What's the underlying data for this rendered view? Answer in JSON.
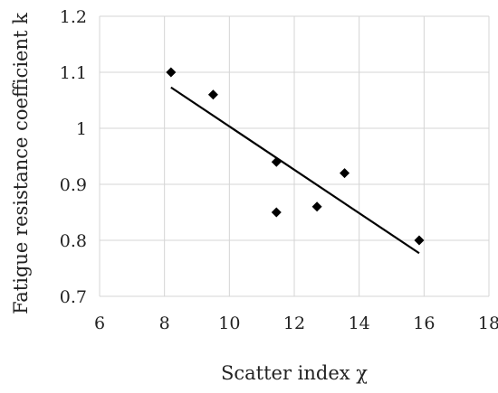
{
  "chart_data": {
    "type": "scatter",
    "title": "",
    "xlabel": "Scatter index χ",
    "ylabel": "Fatigue resistance coefficient k",
    "xlim": [
      6,
      18
    ],
    "ylim": [
      0.7,
      1.2
    ],
    "x_ticks": [
      6,
      8,
      10,
      12,
      14,
      16,
      18
    ],
    "x_tick_labels": [
      "6",
      "8",
      "10",
      "12",
      "14",
      "16",
      "18"
    ],
    "y_ticks": [
      0.7,
      0.8,
      0.9,
      1.0,
      1.1,
      1.2
    ],
    "y_tick_labels": [
      "0.7",
      "0.8",
      "0.9",
      "1",
      "1.1",
      "1.2"
    ],
    "grid": true,
    "legend": "none",
    "marker": "diamond",
    "marker_color": "#000000",
    "series": [
      {
        "points": [
          {
            "x": 8.2,
            "y": 1.1
          },
          {
            "x": 9.5,
            "y": 1.06
          },
          {
            "x": 11.45,
            "y": 0.94
          },
          {
            "x": 11.45,
            "y": 0.85
          },
          {
            "x": 12.7,
            "y": 0.86
          },
          {
            "x": 13.55,
            "y": 0.92
          },
          {
            "x": 15.85,
            "y": 0.8
          }
        ]
      }
    ],
    "trendline": {
      "type": "linear",
      "color": "#000000",
      "from": {
        "x": 8.2,
        "y": 1.073
      },
      "to": {
        "x": 15.85,
        "y": 0.777
      }
    }
  }
}
